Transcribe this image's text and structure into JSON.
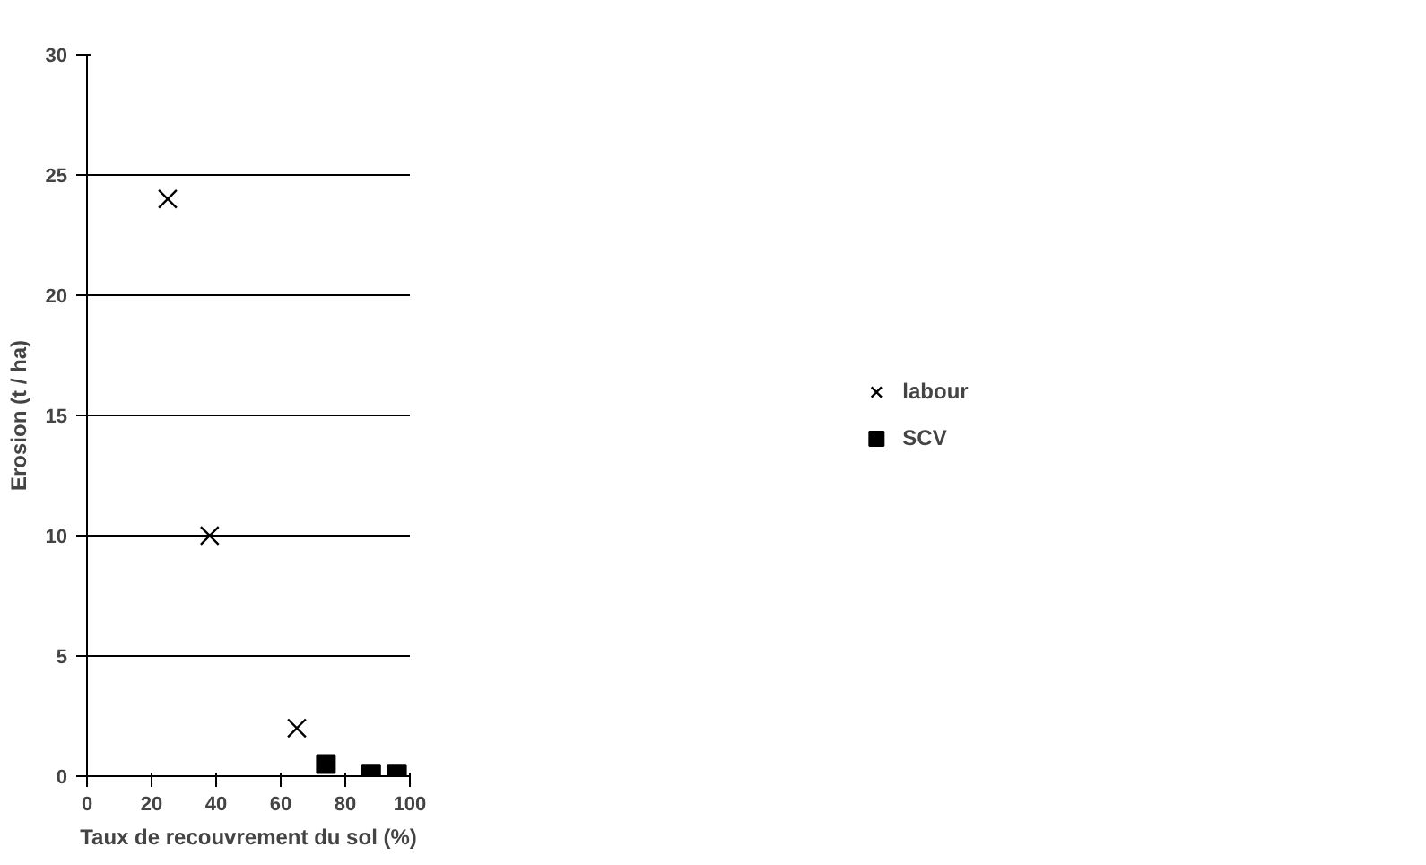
{
  "chart_data": {
    "type": "scatter",
    "xlabel": "Taux de recouvrement du sol (%)",
    "ylabel": "Erosion (t / ha)",
    "series": [
      {
        "name": "labour",
        "color": "#000000",
        "marker": "cross",
        "x": [
          25,
          38,
          65
        ],
        "values": [
          24,
          10,
          2
        ]
      },
      {
        "name": "SCV",
        "color": "#000000",
        "marker": "square",
        "x": [
          74,
          88,
          96
        ],
        "values": [
          0.5,
          0.1,
          0.1
        ]
      }
    ],
    "xlim": [
      0,
      100
    ],
    "xticks": [
      0,
      20,
      40,
      60,
      80,
      100
    ],
    "ylim": [
      0,
      30
    ],
    "yticks": [
      0,
      5,
      10,
      15,
      20,
      25,
      30
    ],
    "grid": "y",
    "legend": "right"
  }
}
